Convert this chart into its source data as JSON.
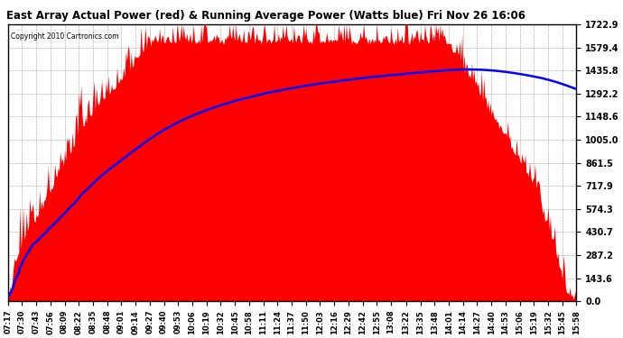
{
  "title": "East Array Actual Power (red) & Running Average Power (Watts blue) Fri Nov 26 16:06",
  "copyright": "Copyright 2010 Cartronics.com",
  "background_color": "#ffffff",
  "actual_color": "red",
  "average_color": "blue",
  "ylim_max": 1722.9,
  "yticks": [
    0.0,
    143.6,
    287.2,
    430.7,
    574.3,
    717.9,
    861.5,
    1005.0,
    1148.6,
    1292.2,
    1435.8,
    1579.4,
    1722.9
  ],
  "x_tick_labels": [
    "07:17",
    "07:30",
    "07:43",
    "07:56",
    "08:09",
    "08:22",
    "08:35",
    "08:48",
    "09:01",
    "09:14",
    "09:27",
    "09:40",
    "09:53",
    "10:06",
    "10:19",
    "10:32",
    "10:45",
    "10:58",
    "11:11",
    "11:24",
    "11:37",
    "11:50",
    "12:03",
    "12:16",
    "12:29",
    "12:42",
    "12:55",
    "13:08",
    "13:22",
    "13:35",
    "13:48",
    "14:01",
    "14:14",
    "14:27",
    "14:40",
    "14:53",
    "15:06",
    "15:19",
    "15:32",
    "15:45",
    "15:58"
  ],
  "figsize": [
    6.9,
    3.75
  ],
  "dpi": 100
}
